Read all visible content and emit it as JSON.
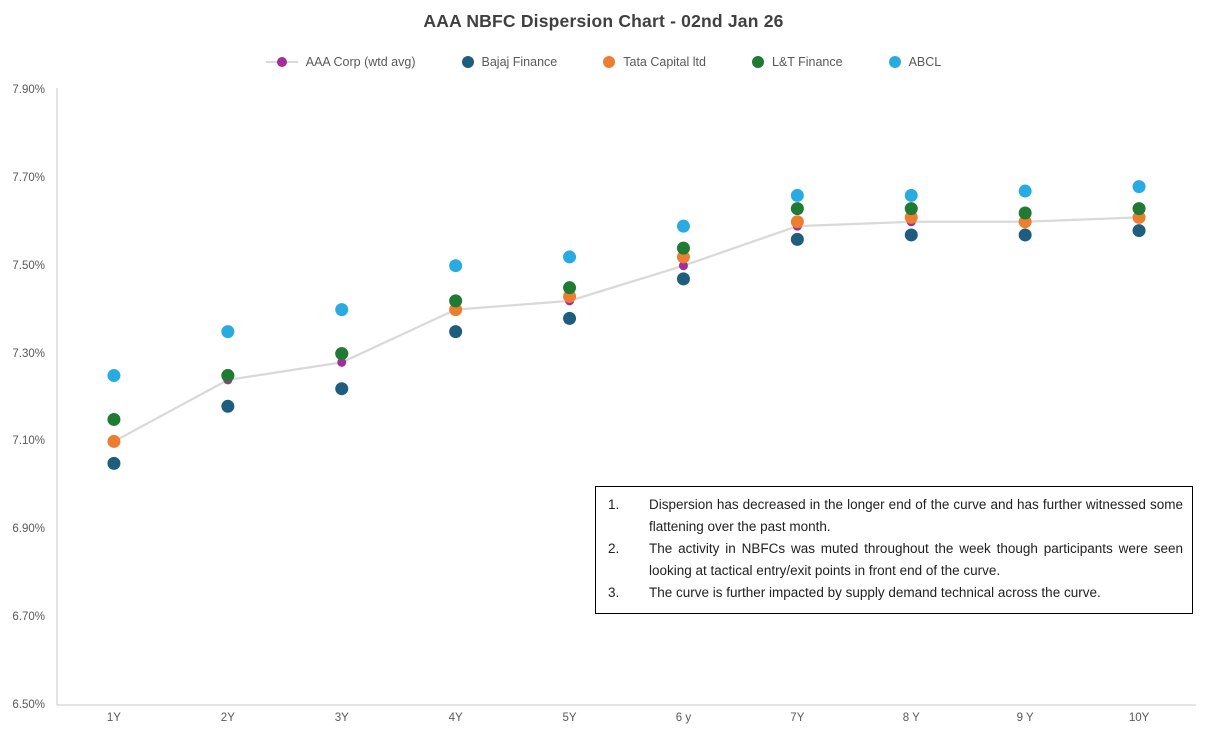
{
  "title": "AAA NBFC Dispersion Chart - 02nd Jan 26",
  "colors": {
    "title_text": "#404040",
    "axis_text": "#595959",
    "axis_line": "#c9c9c9",
    "aaa_line": "#d9d9d9",
    "aaa_marker": "#a32d9b",
    "bajaj": "#1f5d7e",
    "tata": "#ed7d31",
    "lt": "#1f7a33",
    "abcl": "#29abe2",
    "annotation_border": "#000000",
    "annotation_text": "#1f1f1f"
  },
  "chart_data": {
    "type": "scatter",
    "title": "AAA NBFC Dispersion Chart - 02nd Jan 26",
    "categories": [
      "1Y",
      "2Y",
      "3Y",
      "4Y",
      "5Y",
      "6 y",
      "7Y",
      "8 Y",
      "9 Y",
      "10Y"
    ],
    "series": [
      {
        "name": "AAA Corp (wtd avg)",
        "style": "line+marker",
        "marker_color": "#a32d9b",
        "line_color": "#d9d9d9",
        "values": [
          7.1,
          7.24,
          7.28,
          7.4,
          7.42,
          7.5,
          7.59,
          7.6,
          7.6,
          7.61
        ]
      },
      {
        "name": "Bajaj Finance",
        "style": "marker",
        "marker_color": "#1f5d7e",
        "values": [
          7.05,
          7.18,
          7.22,
          7.35,
          7.38,
          7.47,
          7.56,
          7.57,
          7.57,
          7.58
        ]
      },
      {
        "name": "Tata Capital ltd",
        "style": "marker",
        "marker_color": "#ed7d31",
        "values": [
          7.1,
          7.25,
          7.3,
          7.4,
          7.43,
          7.52,
          7.6,
          7.61,
          7.6,
          7.61
        ]
      },
      {
        "name": "L&T Finance",
        "style": "marker",
        "marker_color": "#1f7a33",
        "values": [
          7.15,
          7.25,
          7.3,
          7.42,
          7.45,
          7.54,
          7.63,
          7.63,
          7.62,
          7.63
        ]
      },
      {
        "name": "ABCL",
        "style": "marker",
        "marker_color": "#29abe2",
        "values": [
          7.25,
          7.35,
          7.4,
          7.5,
          7.52,
          7.59,
          7.66,
          7.66,
          7.67,
          7.68
        ]
      }
    ],
    "ylim": [
      6.5,
      7.9
    ],
    "yticks": [
      "7.90%",
      "7.70%",
      "7.50%",
      "7.30%",
      "7.10%",
      "6.90%",
      "6.70%",
      "6.50%"
    ],
    "xlabel": "",
    "ylabel": "",
    "grid": false,
    "legend_position": "top"
  },
  "annotation_box": {
    "items": [
      {
        "num": "1.",
        "text": "Dispersion has decreased in the longer end of the curve and has further witnessed some flattening  over the  past month."
      },
      {
        "num": "2.",
        "text": "The activity in NBFCs was muted throughout the week though participants were seen looking at tactical entry/exit points in front end of the curve."
      },
      {
        "num": "3.",
        "text": "The curve is further impacted by supply demand technical across the curve."
      }
    ]
  }
}
